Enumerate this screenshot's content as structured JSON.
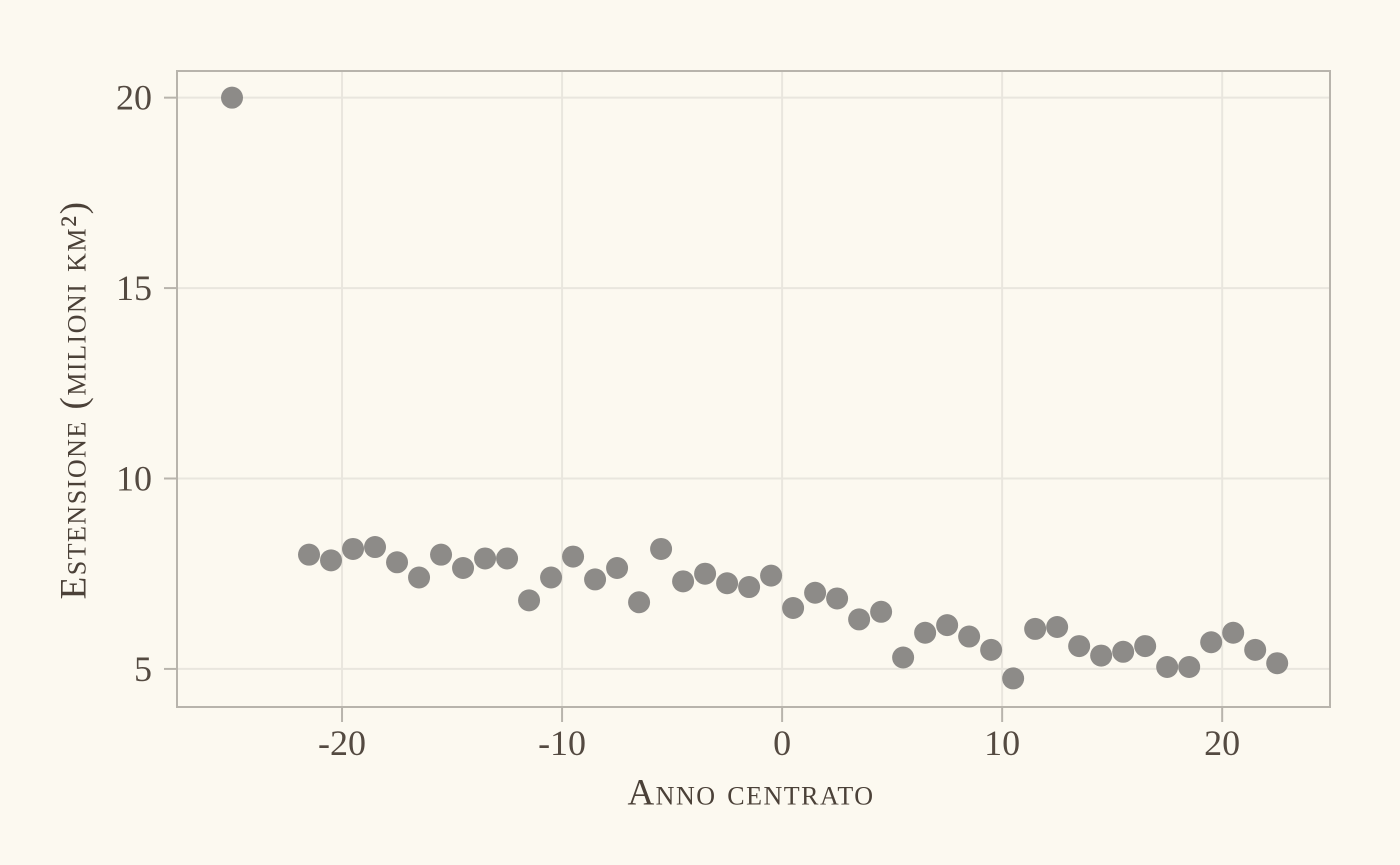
{
  "chart_data": {
    "type": "scatter",
    "title": "",
    "xlabel": "Anno centrato",
    "ylabel": "Estensione (milioni km²)",
    "xlim": [
      -27.5,
      24.9
    ],
    "ylim": [
      4.0,
      20.7
    ],
    "xticks": [
      -20,
      -10,
      0,
      10,
      20
    ],
    "yticks": [
      5,
      10,
      15,
      20
    ],
    "grid": true,
    "legend": "none",
    "colors": {
      "background": "#fcf9f0",
      "marker": "#8d8b88",
      "frame": "#b8b4ac",
      "gridline": "#e9e6de",
      "text": "#4b4138"
    },
    "points": [
      [
        -25.0,
        20.0
      ],
      [
        -21.5,
        8.0
      ],
      [
        -20.5,
        7.85
      ],
      [
        -19.5,
        8.15
      ],
      [
        -18.5,
        8.2
      ],
      [
        -17.5,
        7.8
      ],
      [
        -16.5,
        7.4
      ],
      [
        -15.5,
        8.0
      ],
      [
        -14.5,
        7.65
      ],
      [
        -13.5,
        7.9
      ],
      [
        -12.5,
        7.9
      ],
      [
        -11.5,
        6.8
      ],
      [
        -10.5,
        7.4
      ],
      [
        -9.5,
        7.95
      ],
      [
        -8.5,
        7.35
      ],
      [
        -7.5,
        7.65
      ],
      [
        -6.5,
        6.75
      ],
      [
        -5.5,
        8.15
      ],
      [
        -4.5,
        7.3
      ],
      [
        -3.5,
        7.5
      ],
      [
        -2.5,
        7.25
      ],
      [
        -1.5,
        7.15
      ],
      [
        -0.5,
        7.45
      ],
      [
        0.5,
        6.6
      ],
      [
        1.5,
        7.0
      ],
      [
        2.5,
        6.85
      ],
      [
        3.5,
        6.3
      ],
      [
        4.5,
        6.5
      ],
      [
        5.5,
        5.3
      ],
      [
        6.5,
        5.95
      ],
      [
        7.5,
        6.15
      ],
      [
        8.5,
        5.85
      ],
      [
        9.5,
        5.5
      ],
      [
        10.5,
        4.75
      ],
      [
        11.5,
        6.05
      ],
      [
        12.5,
        6.1
      ],
      [
        13.5,
        5.6
      ],
      [
        14.5,
        5.35
      ],
      [
        15.5,
        5.45
      ],
      [
        16.5,
        5.6
      ],
      [
        17.5,
        5.05
      ],
      [
        18.5,
        5.05
      ],
      [
        19.5,
        5.7
      ],
      [
        20.5,
        5.95
      ],
      [
        21.5,
        5.5
      ],
      [
        22.5,
        5.15
      ]
    ]
  }
}
